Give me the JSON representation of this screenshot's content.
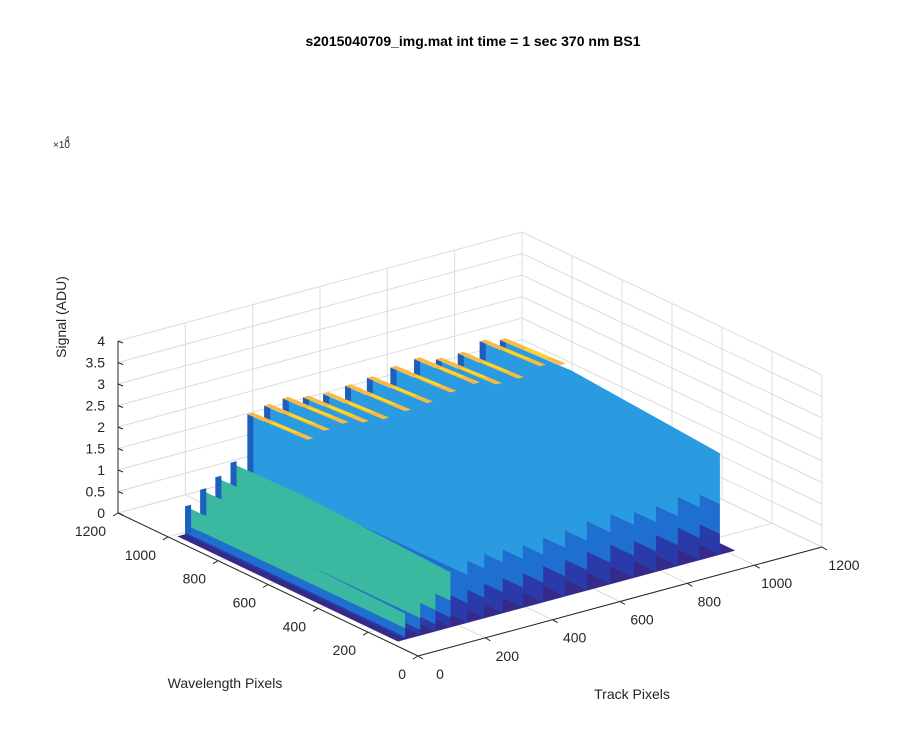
{
  "chart_data": {
    "type": "surface",
    "title": "s2015040709_img.mat int time = 1 sec  370 nm BS1",
    "xlabel": "Track Pixels",
    "ylabel": "Wavelength Pixels",
    "zlabel": "Signal (ADU)",
    "z_exponent_label": "×10",
    "z_exponent_power": "4",
    "x_ticks": [
      "0",
      "200",
      "400",
      "600",
      "800",
      "1000",
      "1200"
    ],
    "y_ticks": [
      "0",
      "200",
      "400",
      "600",
      "800",
      "1000",
      "1200"
    ],
    "z_ticks": [
      "0",
      "0.5",
      "1",
      "1.5",
      "2",
      "2.5",
      "3",
      "3.5",
      "4"
    ],
    "xlim": [
      0,
      1200
    ],
    "ylim": [
      0,
      1200
    ],
    "zlim": [
      0,
      40000
    ],
    "grid": true,
    "colormap": "parula",
    "colors": {
      "low": "#352a87",
      "mid_blue": "#1f6fd0",
      "light_blue": "#2a9be0",
      "teal": "#3bb8a0",
      "high": "#f8ba43",
      "peak": "#f9e01a"
    },
    "background_level": 1200,
    "fibers": [
      {
        "track_px": 30,
        "peak": 8000
      },
      {
        "track_px": 75,
        "peak": 11000
      },
      {
        "track_px": 120,
        "peak": 13000
      },
      {
        "track_px": 165,
        "peak": 15500
      },
      {
        "track_px": 215,
        "peak": 26000
      },
      {
        "track_px": 265,
        "peak": 27000
      },
      {
        "track_px": 320,
        "peak": 27500
      },
      {
        "track_px": 380,
        "peak": 26500
      },
      {
        "track_px": 440,
        "peak": 26000
      },
      {
        "track_px": 505,
        "peak": 26500
      },
      {
        "track_px": 570,
        "peak": 27000
      },
      {
        "track_px": 640,
        "peak": 28000
      },
      {
        "track_px": 710,
        "peak": 28500
      },
      {
        "track_px": 775,
        "peak": 27000
      },
      {
        "track_px": 840,
        "peak": 27000
      },
      {
        "track_px": 905,
        "peak": 28500
      },
      {
        "track_px": 965,
        "peak": 27500
      }
    ]
  }
}
